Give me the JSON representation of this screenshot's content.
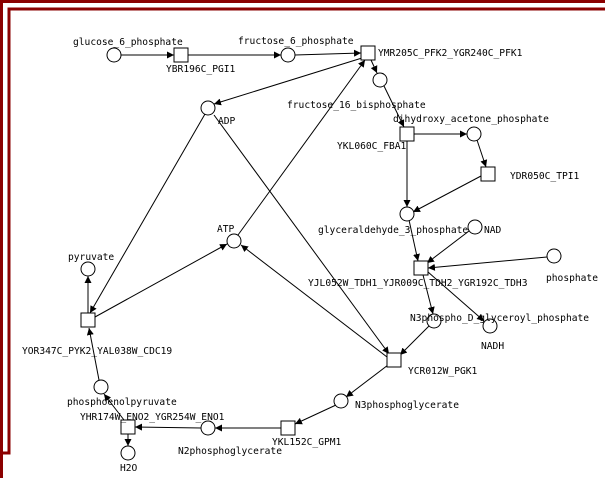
{
  "colors": {
    "frame": "#8b0000",
    "background": "#ffffff",
    "ink": "#000000"
  },
  "metabolites": {
    "glucose_6_phosphate": "glucose_6_phosphate",
    "fructose_6_phosphate": "fructose_6_phosphate",
    "ADP": "ADP",
    "fructose_16_bisphosphate": "fructose_16_bisphosphate",
    "dihydroxy_acetone_phosphate": "dihydroxy_acetone_phosphate",
    "glyceraldehyde_3_phosphate": "glyceraldehyde_3_phosphate",
    "NAD": "NAD",
    "ATP": "ATP",
    "pyruvate": "pyruvate",
    "phosphate": "phosphate",
    "N3phospho_D_glyceroyl_phosphate": "N3phospho_D_glyceroyl_phosphate",
    "NADH": "NADH",
    "N3phosphoglycerate": "N3phosphoglycerate",
    "phosphoenolpyruvate": "phosphoenolpyruvate",
    "N2phosphoglycerate": "N2phosphoglycerate",
    "H2O": "H2O"
  },
  "reactions": {
    "PGI1": "YBR196C_PGI1",
    "PFK": "YMR205C_PFK2_YGR240C_PFK1",
    "FBA1": "YKL060C_FBA1",
    "TPI1": "YDR050C_TPI1",
    "TDH": "YJL052W_TDH1_YJR009C_TDH2_YGR192C_TDH3",
    "PYK": "YOR347C_PYK2_YAL038W_CDC19",
    "PGK1": "YCR012W_PGK1",
    "GPM1": "YKL152C_GPM1",
    "ENO": "YHR174W_ENO2_YGR254W_ENO1"
  }
}
